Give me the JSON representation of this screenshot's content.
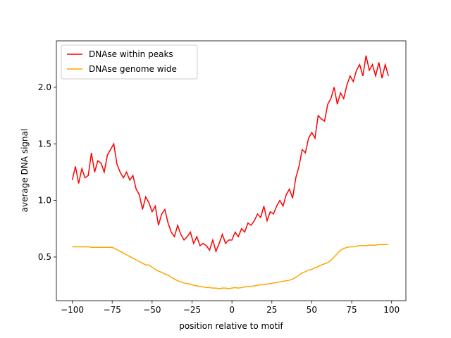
{
  "chart_data": {
    "type": "line",
    "xlabel": "position relative to motif",
    "ylabel": "average DNA signal",
    "x": [
      -100,
      -98,
      -96,
      -94,
      -92,
      -90,
      -88,
      -86,
      -84,
      -82,
      -80,
      -78,
      -76,
      -74,
      -72,
      -70,
      -68,
      -66,
      -64,
      -62,
      -60,
      -58,
      -56,
      -54,
      -52,
      -50,
      -48,
      -46,
      -44,
      -42,
      -40,
      -38,
      -36,
      -34,
      -32,
      -30,
      -28,
      -26,
      -24,
      -22,
      -20,
      -18,
      -16,
      -14,
      -12,
      -10,
      -8,
      -6,
      -4,
      -2,
      0,
      2,
      4,
      6,
      8,
      10,
      12,
      14,
      16,
      18,
      20,
      22,
      24,
      26,
      28,
      30,
      32,
      34,
      36,
      38,
      40,
      42,
      44,
      46,
      48,
      50,
      52,
      54,
      56,
      58,
      60,
      62,
      64,
      66,
      68,
      70,
      72,
      74,
      76,
      78,
      80,
      82,
      84,
      86,
      88,
      90,
      92,
      94,
      96,
      98
    ],
    "series": [
      {
        "name": "DNAse within peaks",
        "color": "#ff0000",
        "values": [
          1.18,
          1.3,
          1.15,
          1.28,
          1.2,
          1.22,
          1.42,
          1.25,
          1.35,
          1.33,
          1.25,
          1.4,
          1.45,
          1.5,
          1.32,
          1.25,
          1.2,
          1.25,
          1.18,
          1.22,
          1.1,
          1.05,
          0.92,
          1.03,
          0.98,
          0.9,
          0.95,
          0.78,
          0.88,
          0.92,
          0.8,
          0.72,
          0.68,
          0.78,
          0.7,
          0.65,
          0.68,
          0.72,
          0.62,
          0.68,
          0.6,
          0.62,
          0.6,
          0.56,
          0.65,
          0.55,
          0.62,
          0.7,
          0.62,
          0.65,
          0.65,
          0.72,
          0.68,
          0.75,
          0.72,
          0.8,
          0.78,
          0.82,
          0.88,
          0.85,
          0.95,
          0.82,
          0.9,
          0.88,
          0.95,
          1.0,
          0.95,
          1.05,
          1.1,
          1.02,
          1.2,
          1.3,
          1.45,
          1.42,
          1.55,
          1.6,
          1.55,
          1.75,
          1.72,
          1.7,
          1.85,
          1.9,
          2.0,
          1.85,
          1.95,
          1.9,
          2.02,
          2.1,
          2.05,
          2.15,
          2.2,
          2.1,
          2.28,
          2.15,
          2.2,
          2.1,
          2.22,
          2.08,
          2.2,
          2.1
        ]
      },
      {
        "name": "DNAse genome wide",
        "color": "#ffa500",
        "values": [
          0.59,
          0.59,
          0.59,
          0.59,
          0.59,
          0.59,
          0.585,
          0.585,
          0.585,
          0.585,
          0.585,
          0.585,
          0.585,
          0.58,
          0.565,
          0.55,
          0.535,
          0.52,
          0.505,
          0.49,
          0.475,
          0.46,
          0.445,
          0.43,
          0.43,
          0.41,
          0.39,
          0.375,
          0.365,
          0.35,
          0.34,
          0.32,
          0.305,
          0.29,
          0.28,
          0.27,
          0.265,
          0.26,
          0.25,
          0.245,
          0.24,
          0.235,
          0.23,
          0.23,
          0.225,
          0.225,
          0.22,
          0.225,
          0.225,
          0.22,
          0.225,
          0.23,
          0.225,
          0.23,
          0.235,
          0.24,
          0.24,
          0.245,
          0.25,
          0.255,
          0.255,
          0.26,
          0.265,
          0.27,
          0.275,
          0.28,
          0.285,
          0.29,
          0.295,
          0.305,
          0.32,
          0.34,
          0.36,
          0.37,
          0.385,
          0.39,
          0.405,
          0.415,
          0.43,
          0.44,
          0.45,
          0.47,
          0.5,
          0.53,
          0.56,
          0.575,
          0.585,
          0.59,
          0.59,
          0.595,
          0.6,
          0.6,
          0.6,
          0.605,
          0.605,
          0.605,
          0.61,
          0.61,
          0.61,
          0.61
        ]
      }
    ],
    "xlim": [
      -109.95,
      108.95
    ],
    "xticks": [
      {
        "value": -100,
        "label": "−100"
      },
      {
        "value": -75,
        "label": "−75"
      },
      {
        "value": -50,
        "label": "−50"
      },
      {
        "value": -25,
        "label": "−25"
      },
      0,
      25,
      50,
      75,
      100
    ],
    "ylim": [
      0.114,
      2.41
    ],
    "yticks": [
      0.5,
      {
        "value": 1,
        "label": "1.0"
      },
      1.5,
      {
        "value": 2,
        "label": "2.0"
      }
    ],
    "legend": "upper left"
  }
}
